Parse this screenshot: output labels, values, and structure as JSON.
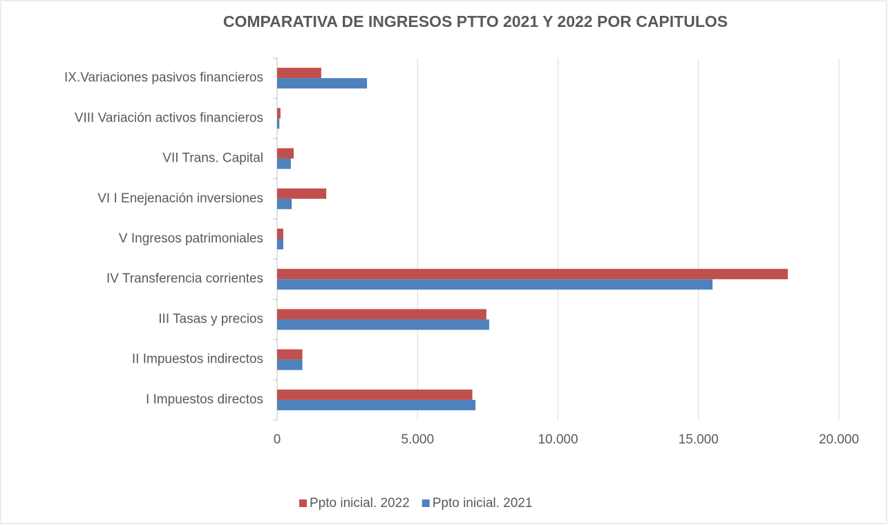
{
  "chart_data": {
    "type": "hbar",
    "title": "COMPARATIVA DE INGRESOS PTTO 2021 Y 2022 POR CAPITULOS",
    "categories": [
      "I Impuestos directos",
      "II Impuestos indirectos",
      "III Tasas y precios",
      "IV Transferencia corrientes",
      "V Ingresos patrimoniales",
      "VI I Enejenación inversiones",
      "VII Trans. Capital ",
      "VIII Variación activos financieros",
      "IX.Variaciones pasivos financieros"
    ],
    "series": [
      {
        "name": "Ppto inicial. 2022",
        "color": "#c0504d",
        "values": [
          6950,
          900,
          7450,
          18180,
          220,
          1750,
          590,
          120,
          1570
        ]
      },
      {
        "name": "Ppto inicial. 2021",
        "color": "#4f81bd",
        "values": [
          7060,
          900,
          7550,
          15500,
          220,
          520,
          490,
          80,
          3200
        ]
      }
    ],
    "xlim": [
      0,
      20000
    ],
    "xticks": [
      0,
      {
        "value": 5000,
        "label": "5.000"
      },
      {
        "value": 10000,
        "label": "10.000"
      },
      {
        "value": 15000,
        "label": "15.000"
      },
      {
        "value": 20000,
        "label": "20.000"
      }
    ],
    "grid": true,
    "legend": "bottom"
  }
}
